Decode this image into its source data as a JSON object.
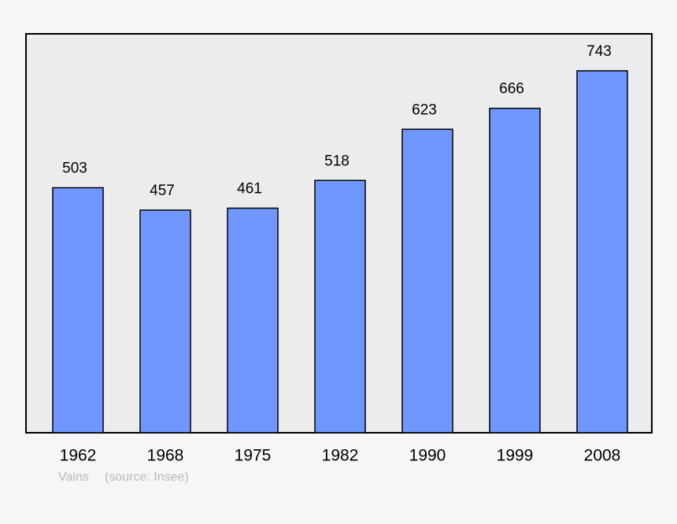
{
  "chart_data": {
    "type": "bar",
    "caption": "Vains",
    "source": "(source: Insee)",
    "categories": [
      "1962",
      "1968",
      "1975",
      "1982",
      "1990",
      "1999",
      "2008"
    ],
    "values": [
      503,
      457,
      461,
      518,
      623,
      666,
      743
    ],
    "color": "#7097ff"
  }
}
